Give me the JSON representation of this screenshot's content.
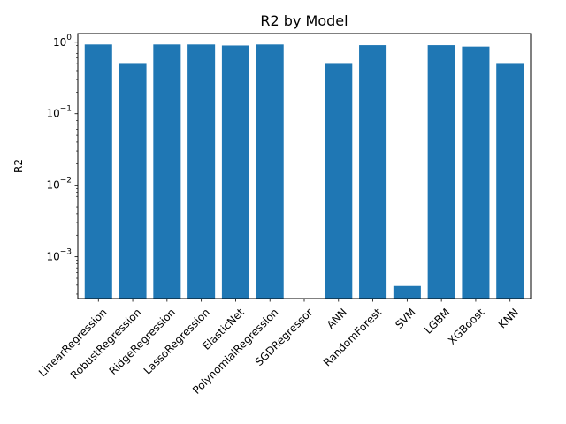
{
  "chart_data": {
    "type": "bar",
    "title": "R2 by Model",
    "xlabel": "",
    "ylabel": "R2",
    "yscale": "log",
    "ylim": [
      0.00026,
      1.32
    ],
    "color": "#1f77b4",
    "categories": [
      "LinearRegression",
      "RobustRegression",
      "RidgeRegression",
      "LassoRegression",
      "ElasticNet",
      "PolynomialRegression",
      "SGDRegressor",
      "ANN",
      "RandomForest",
      "SVM",
      "LGBM",
      "XGBoost",
      "KNN"
    ],
    "values": [
      0.93,
      0.51,
      0.93,
      0.93,
      0.9,
      0.93,
      null,
      0.51,
      0.91,
      0.00039,
      0.91,
      0.87,
      0.51
    ],
    "yticks": [
      {
        "value": 0.001,
        "base": "10",
        "exp": "−3"
      },
      {
        "value": 0.01,
        "base": "10",
        "exp": "−2"
      },
      {
        "value": 0.1,
        "base": "10",
        "exp": "−1"
      },
      {
        "value": 1,
        "base": "10",
        "exp": "0"
      }
    ]
  }
}
